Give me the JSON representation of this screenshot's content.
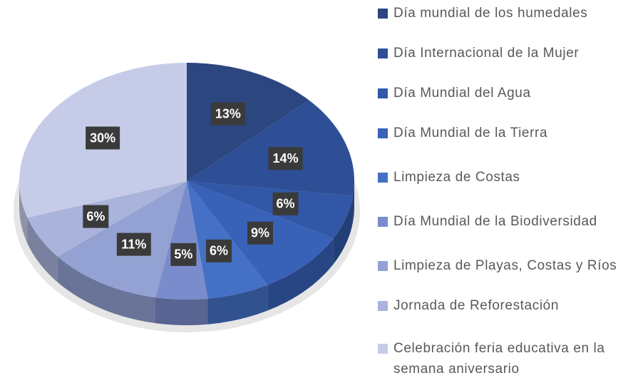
{
  "chart_data": {
    "type": "pie",
    "categories": [
      "Día mundial de los humedales",
      "Día Internacional de la Mujer",
      "Día Mundial del Agua",
      "Día Mundial de la Tierra",
      "Limpieza de Costas",
      "Día Mundial de la Biodiversidad",
      " Limpieza de Playas, Costas y Ríos",
      "Jornada de Reforestación",
      "Celebración feria educativa en la semana aniversario"
    ],
    "values": [
      13,
      14,
      6,
      9,
      6,
      5,
      11,
      6,
      30
    ],
    "value_labels": [
      "13%",
      "14%",
      "6%",
      "9%",
      "6%",
      "5%",
      "11%",
      "6%",
      "30%"
    ],
    "colors": [
      "#2c4680",
      "#2e4f96",
      "#3157a6",
      "#3861b8",
      "#4470c6",
      "#7a8ccb",
      "#93a1d3",
      "#aab3db",
      "#c6cce8"
    ],
    "legend": "right"
  }
}
